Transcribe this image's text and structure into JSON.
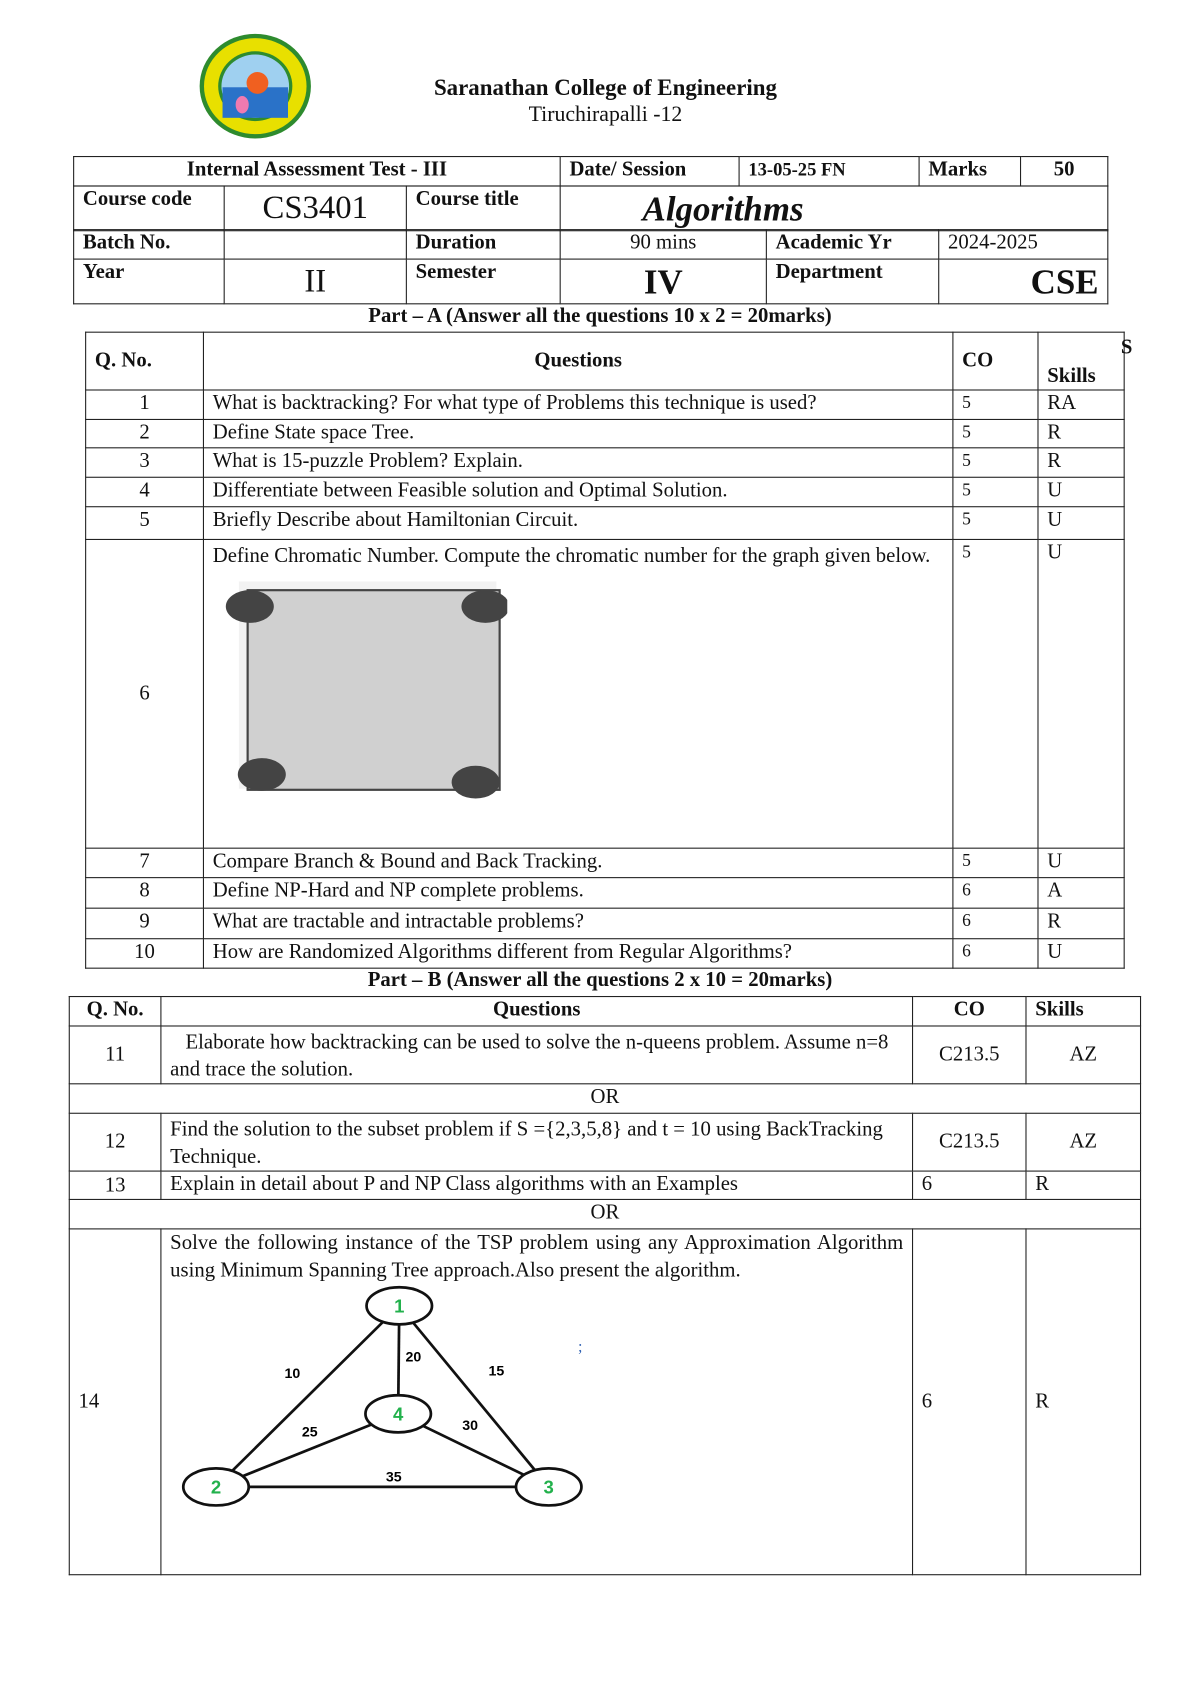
{
  "header": {
    "college": "Saranathan College of Engineering",
    "location": "Tiruchirapalli -12",
    "logo_text": "SARANATHAN COLLEGE OF ENGINEERING TIRUCHIRAPALLI",
    "colors": {
      "logo_ring": "#e8e000",
      "logo_border": "#2e8b2e",
      "logo_water": "#2a72c8",
      "logo_sun": "#f06020"
    }
  },
  "info": {
    "test_name": "Internal Assessment Test - III",
    "date_label": "Date/ Session",
    "date_value": "13-05-25 FN",
    "marks_label": "Marks",
    "marks_value": "50",
    "course_code_label": "Course code",
    "course_code": "CS3401",
    "course_title_label": "Course title",
    "course_title": "Algorithms",
    "batch_label": "Batch No.",
    "batch_value": "",
    "duration_label": "Duration",
    "duration_value": "90 mins",
    "academic_label": "Academic Yr",
    "academic_value": "2024-2025",
    "year_label": "Year",
    "year_value": "II",
    "semester_label": "Semester",
    "semester_value": "IV",
    "department_label": "Department",
    "department_value": "CSE"
  },
  "part_a": {
    "title": "Part – A  (Answer all the questions 10 x 2 = 20marks)",
    "headers": {
      "qno": "Q. No.",
      "questions": "Questions",
      "co": "CO",
      "skills_s": "S",
      "skills": "Skills"
    },
    "rows": [
      {
        "no": "1",
        "q": "What is backtracking?  For what type of Problems this technique is used?",
        "co": "5",
        "skill": "RA"
      },
      {
        "no": "2",
        "q": "Define State space Tree.",
        "co": "5",
        "skill": "R"
      },
      {
        "no": "3",
        "q": "What is 15-puzzle Problem? Explain.",
        "co": "5",
        "skill": "R"
      },
      {
        "no": "4",
        "q": "Differentiate between Feasible solution and Optimal Solution.",
        "co": "5",
        "skill": "U"
      },
      {
        "no": "5",
        "q": "Briefly Describe about Hamiltonian Circuit.",
        "co": "5",
        "skill": "U"
      },
      {
        "no": "6",
        "q": "Define Chromatic Number. Compute the chromatic number for the graph given below.",
        "co": "5",
        "skill": "U"
      },
      {
        "no": "7",
        "q": "Compare Branch & Bound and Back Tracking.",
        "co": "5",
        "skill": "U"
      },
      {
        "no": "8",
        "q": "Define NP-Hard and NP complete problems.",
        "co": "6",
        "skill": "A"
      },
      {
        "no": "9",
        "q": "What are tractable and intractable problems?",
        "co": "6",
        "skill": "R"
      },
      {
        "no": "10",
        "q": "How are Randomized Algorithms different from Regular Algorithms?",
        "co": "6",
        "skill": "U"
      }
    ]
  },
  "part_b": {
    "title": "Part – B  (Answer all the questions 2 x 10 = 20marks)",
    "headers": {
      "qno": "Q. No.",
      "questions": "Questions",
      "co": "CO",
      "skills": "Skills"
    },
    "or": "OR",
    "rows": [
      {
        "no": "11",
        "q": "Elaborate how backtracking can be used to solve the n-queens problem. Assume n=8 and trace the solution.",
        "co": "C213.5",
        "skill": "AZ"
      },
      {
        "no": "12",
        "q": "Find the solution to the subset problem  if  S ={2,3,5,8} and t = 10 using BackTracking Technique.",
        "co": "C213.5",
        "skill": "AZ"
      },
      {
        "no": "13",
        "q": "Explain in detail about P and NP Class algorithms with an Examples",
        "co": "6",
        "skill": "R"
      },
      {
        "no": "14",
        "q": "Solve the following instance of the TSP problem using any Approximation Algorithm using Minimum Spanning Tree approach.Also present the algorithm.",
        "co": "6",
        "skill": "R"
      }
    ],
    "graph": {
      "nodes": [
        "1",
        "2",
        "3",
        "4"
      ],
      "edges": [
        {
          "from": "1",
          "to": "2",
          "w": "10"
        },
        {
          "from": "1",
          "to": "4",
          "w": "20"
        },
        {
          "from": "1",
          "to": "3",
          "w": "15"
        },
        {
          "from": "4",
          "to": "2",
          "w": "25"
        },
        {
          "from": "4",
          "to": "3",
          "w": "30"
        },
        {
          "from": "2",
          "to": "3",
          "w": "35"
        }
      ],
      "stray_mark": ";",
      "node_label_color": "#22b14c"
    }
  }
}
